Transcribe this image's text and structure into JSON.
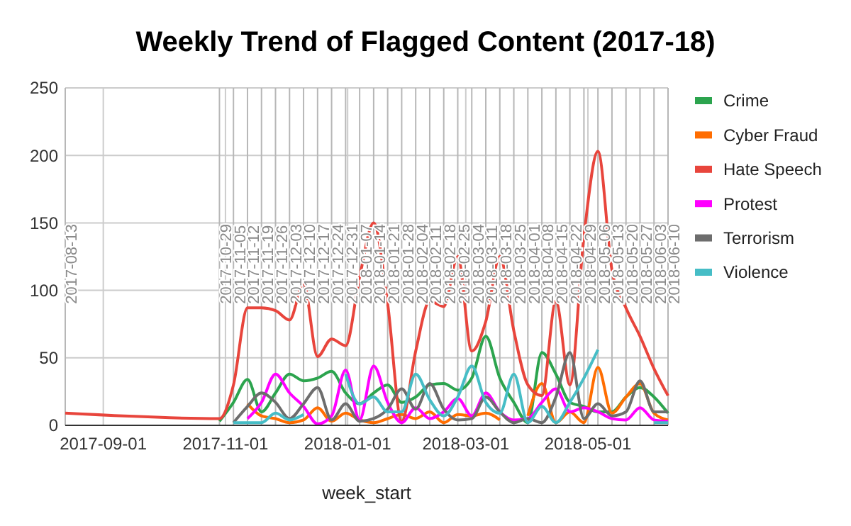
{
  "chart_data": {
    "type": "line",
    "title": "Weekly Trend of Flagged Content (2017-18)",
    "xlabel": "week_start",
    "x": [
      "2017-08-13",
      "2017-10-29",
      "2017-11-05",
      "2017-11-12",
      "2017-11-19",
      "2017-11-26",
      "2017-12-03",
      "2017-12-10",
      "2017-12-17",
      "2017-12-24",
      "2017-12-31",
      "2018-01-07",
      "2018-01-14",
      "2018-01-21",
      "2018-01-28",
      "2018-02-04",
      "2018-02-11",
      "2018-02-18",
      "2018-02-25",
      "2018-03-04",
      "2018-03-11",
      "2018-03-18",
      "2018-03-25",
      "2018-04-01",
      "2018-04-08",
      "2018-04-15",
      "2018-04-22",
      "2018-04-29",
      "2018-05-06",
      "2018-05-13",
      "2018-05-20",
      "2018-05-27",
      "2018-06-03",
      "2018-06-10"
    ],
    "series": [
      {
        "name": "Crime",
        "color": "#2ca44e",
        "values": [
          null,
          3,
          17,
          34,
          10,
          24,
          38,
          33,
          35,
          40,
          24,
          16,
          24,
          30,
          17,
          21,
          30,
          31,
          26,
          35,
          66,
          35,
          17,
          2,
          54,
          38,
          17,
          14,
          10,
          10,
          21,
          28,
          21,
          9
        ]
      },
      {
        "name": "Cyber Fraud",
        "color": "#ff6d01",
        "values": [
          null,
          null,
          null,
          16,
          7,
          5,
          2,
          4,
          13,
          3,
          9,
          4,
          2,
          5,
          8,
          5,
          10,
          2,
          8,
          7,
          9,
          4,
          null,
          7,
          31,
          2,
          10,
          2,
          43,
          9,
          21,
          31,
          9,
          4
        ]
      },
      {
        "name": "Hate Speech",
        "color": "#e8453c",
        "values": [
          9,
          5,
          30,
          87,
          87,
          85,
          78,
          105,
          51,
          64,
          59,
          110,
          150,
          90,
          3,
          55,
          92,
          88,
          125,
          55,
          77,
          125,
          70,
          30,
          22,
          92,
          30,
          140,
          203,
          115,
          87,
          66,
          42,
          22
        ]
      },
      {
        "name": "Protest",
        "color": "#ff00ff",
        "values": [
          null,
          null,
          null,
          5,
          17,
          38,
          24,
          14,
          1,
          7,
          41,
          4,
          44,
          17,
          2,
          13,
          5,
          10,
          20,
          7,
          24,
          10,
          4,
          5,
          17,
          27,
          10,
          13,
          10,
          5,
          4,
          13,
          4,
          3
        ]
      },
      {
        "name": "Terrorism",
        "color": "#6d6d6d",
        "values": [
          null,
          null,
          2,
          14,
          24,
          17,
          5,
          16,
          28,
          4,
          16,
          3,
          5,
          12,
          27,
          12,
          31,
          12,
          4,
          5,
          21,
          10,
          2,
          5,
          2,
          21,
          54,
          5,
          16,
          7,
          10,
          33,
          10,
          10
        ]
      },
      {
        "name": "Violence",
        "color": "#46bdc6",
        "values": [
          null,
          null,
          2,
          2,
          2,
          9,
          4,
          8,
          null,
          null,
          38,
          16,
          21,
          10,
          10,
          38,
          19,
          7,
          21,
          44,
          17,
          9,
          38,
          2,
          14,
          2,
          17,
          35,
          56,
          null,
          null,
          null,
          2,
          2
        ]
      }
    ],
    "xlim": [
      "2017-08-13",
      "2018-06-10"
    ],
    "xticks": [
      "2017-09-01",
      "2017-11-01",
      "2018-01-01",
      "2018-03-01",
      "2018-05-01"
    ],
    "ylim": [
      0,
      250
    ],
    "yticks": [
      0,
      50,
      100,
      150,
      200,
      250
    ],
    "ref_lines": [
      {
        "axis": "x",
        "value": "2017-08-13",
        "label": "2017-08-13"
      },
      {
        "axis": "x",
        "value": "2017-10-29",
        "label": "2017-10-29"
      },
      {
        "axis": "x",
        "value": "2017-11-05",
        "label": "2017-11-05"
      },
      {
        "axis": "x",
        "value": "2017-11-12",
        "label": "2017-11-12"
      },
      {
        "axis": "x",
        "value": "2017-11-19",
        "label": "2017-11-19"
      },
      {
        "axis": "x",
        "value": "2017-11-26",
        "label": "2017-11-26"
      },
      {
        "axis": "x",
        "value": "2017-12-03",
        "label": "2017-12-03"
      },
      {
        "axis": "x",
        "value": "2017-12-10",
        "label": "2017-12-10"
      },
      {
        "axis": "x",
        "value": "2017-12-17",
        "label": "2017-12-17"
      },
      {
        "axis": "x",
        "value": "2017-12-24",
        "label": "2017-12-24"
      },
      {
        "axis": "x",
        "value": "2017-12-31",
        "label": "2017-12-31"
      },
      {
        "axis": "x",
        "value": "2018-01-07",
        "label": "2018-01-07"
      },
      {
        "axis": "x",
        "value": "2018-01-14",
        "label": "2018-01-14"
      },
      {
        "axis": "x",
        "value": "2018-01-21",
        "label": "2018-01-21"
      },
      {
        "axis": "x",
        "value": "2018-01-28",
        "label": "2018-01-28"
      },
      {
        "axis": "x",
        "value": "2018-02-04",
        "label": "2018-02-04"
      },
      {
        "axis": "x",
        "value": "2018-02-11",
        "label": "2018-02-11"
      },
      {
        "axis": "x",
        "value": "2018-02-18",
        "label": "2018-02-18"
      },
      {
        "axis": "x",
        "value": "2018-02-25",
        "label": "2018-02-25"
      },
      {
        "axis": "x",
        "value": "2018-03-04",
        "label": "2018-03-04"
      },
      {
        "axis": "x",
        "value": "2018-03-11",
        "label": "2018-03-11"
      },
      {
        "axis": "x",
        "value": "2018-03-18",
        "label": "2018-03-18"
      },
      {
        "axis": "x",
        "value": "2018-03-25",
        "label": "2018-03-25"
      },
      {
        "axis": "x",
        "value": "2018-04-01",
        "label": "2018-04-01"
      },
      {
        "axis": "x",
        "value": "2018-04-08",
        "label": "2018-04-08"
      },
      {
        "axis": "x",
        "value": "2018-04-15",
        "label": "2018-04-15"
      },
      {
        "axis": "x",
        "value": "2018-04-22",
        "label": "2018-04-22"
      },
      {
        "axis": "x",
        "value": "2018-04-29",
        "label": "2018-04-29"
      },
      {
        "axis": "x",
        "value": "2018-05-06",
        "label": "2018-05-06"
      },
      {
        "axis": "x",
        "value": "2018-05-13",
        "label": "2018-05-13"
      },
      {
        "axis": "x",
        "value": "2018-05-20",
        "label": "2018-05-20"
      },
      {
        "axis": "x",
        "value": "2018-05-27",
        "label": "2018-05-27"
      },
      {
        "axis": "x",
        "value": "2018-06-03",
        "label": "2018-06-03"
      },
      {
        "axis": "x",
        "value": "2018-06-10",
        "label": "2018-06-10"
      }
    ],
    "grid": true,
    "legend": "right"
  }
}
